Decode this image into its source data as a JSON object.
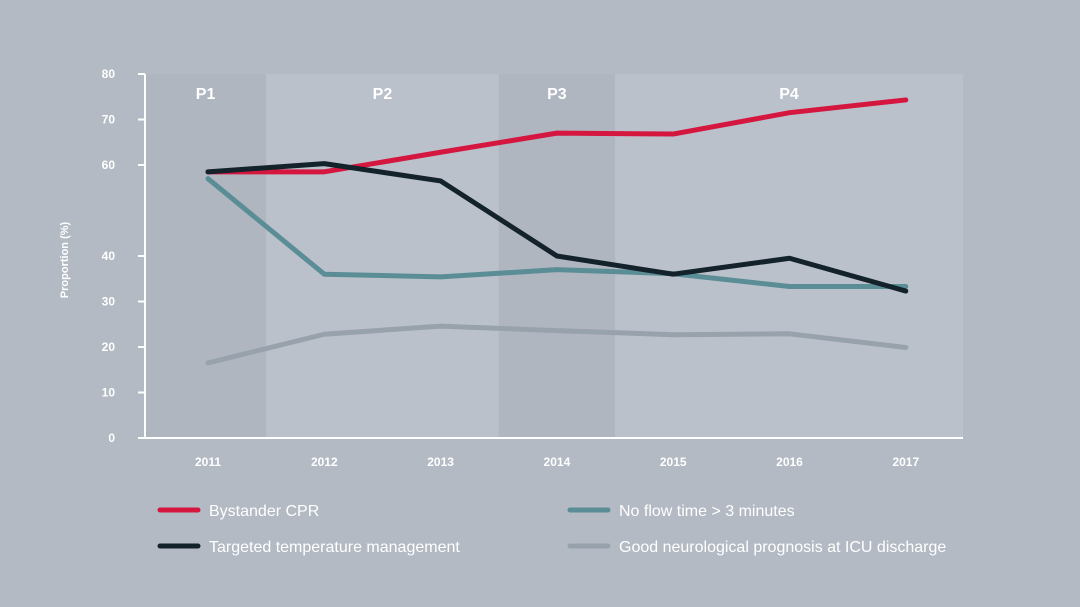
{
  "chart_data": {
    "type": "line",
    "title": "",
    "xlabel": "",
    "ylabel": "Proportion (%)",
    "ylim": [
      0,
      80
    ],
    "y_ticks": [
      0,
      10,
      20,
      30,
      40,
      60,
      70,
      80
    ],
    "x": [
      "2011",
      "2012",
      "2013",
      "2014",
      "2015",
      "2016",
      "2017"
    ],
    "grid": false,
    "legend_position": "bottom",
    "periods": [
      {
        "label": "P1",
        "from": "2011",
        "to": "2011",
        "color": "#afb6bf"
      },
      {
        "label": "P2",
        "from": "2012",
        "to": "2013",
        "color": "#bac1ca"
      },
      {
        "label": "P3",
        "from": "2014",
        "to": "2014",
        "color": "#afb6bf"
      },
      {
        "label": "P4",
        "from": "2015",
        "to": "2017",
        "color": "#bac1ca"
      }
    ],
    "series": [
      {
        "name": "Bystander CPR",
        "color": "#d5163f",
        "values": [
          58.5,
          58.5,
          62.8,
          67,
          66.8,
          71.5,
          74.3
        ]
      },
      {
        "name": "Targeted temperature management",
        "color": "#14222b",
        "values": [
          58.5,
          60.3,
          56.5,
          40,
          36,
          39.5,
          32.3
        ]
      },
      {
        "name": "No flow time > 3 minutes",
        "color": "#5b8d96",
        "values": [
          57,
          36,
          35.4,
          37,
          36.1,
          33.3,
          33.3
        ]
      },
      {
        "name": "Good neurological prognosis at ICU discharge",
        "color": "#98a2ac",
        "values": [
          16.5,
          22.8,
          24.6,
          23.6,
          22.7,
          22.9,
          19.9
        ]
      }
    ],
    "legend_order": [
      0,
      2,
      1,
      3
    ]
  }
}
